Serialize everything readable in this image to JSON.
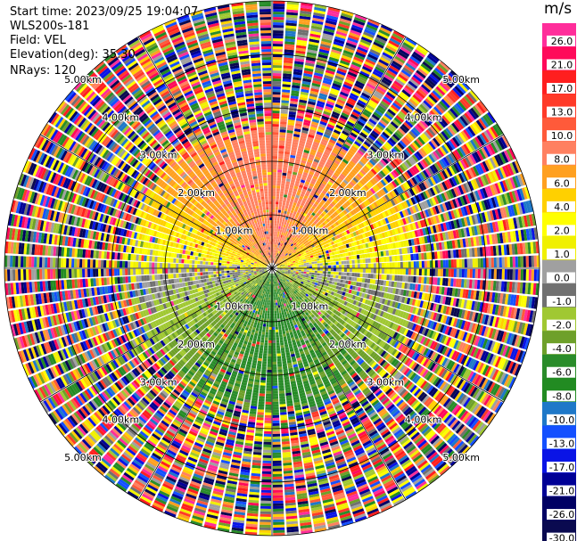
{
  "header": {
    "start_time": "Start time: 2023/09/25 19:04:07",
    "instrument": "WLS200s-181",
    "field": "Field: VEL",
    "elevation": "Elevation(deg): 35.30",
    "nrays": "NRays: 120"
  },
  "colorbar": {
    "unit": "m/s",
    "ticks": [
      "26.0",
      "21.0",
      "17.0",
      "13.0",
      "10.0",
      "8.0",
      "6.0",
      "4.0",
      "2.0",
      "1.0",
      "0.0",
      "-1.0",
      "-2.0",
      "-4.0",
      "-6.0",
      "-8.0",
      "-10.0",
      "-13.0",
      "-17.0",
      "-21.0",
      "-26.0",
      "-30.0"
    ],
    "colors": [
      "#ff2d9a",
      "#ff0a5a",
      "#ff1f1f",
      "#ff3a28",
      "#ff5a3a",
      "#ff8060",
      "#ffa020",
      "#ffd000",
      "#ffff00",
      "#f0f000",
      "#a0a0a0",
      "#707070",
      "#a0c832",
      "#6ea02a",
      "#2a8c2a",
      "#228b22",
      "#1e78c8",
      "#1450ff",
      "#0a14e6",
      "#000096",
      "#000064",
      "#0a0a50"
    ]
  },
  "chart_data": {
    "type": "heatmap",
    "projection": "polar PPI",
    "field": "VEL",
    "elevation_deg": 35.3,
    "nrays": 120,
    "range_rings_km": [
      1.0,
      2.0,
      3.0,
      4.0,
      5.0
    ],
    "range_ring_labels": [
      "1.00km",
      "2.00km",
      "3.00km",
      "4.00km",
      "5.00km"
    ],
    "max_range_km": 5.0,
    "velocity_pattern": "positive (yellow/orange, 2–8 m/s) to the north, near-zero grey to east/west, negative (green/blue, -2 to -10 m/s) to the south within ~2.5 km; noisy random values beyond"
  }
}
